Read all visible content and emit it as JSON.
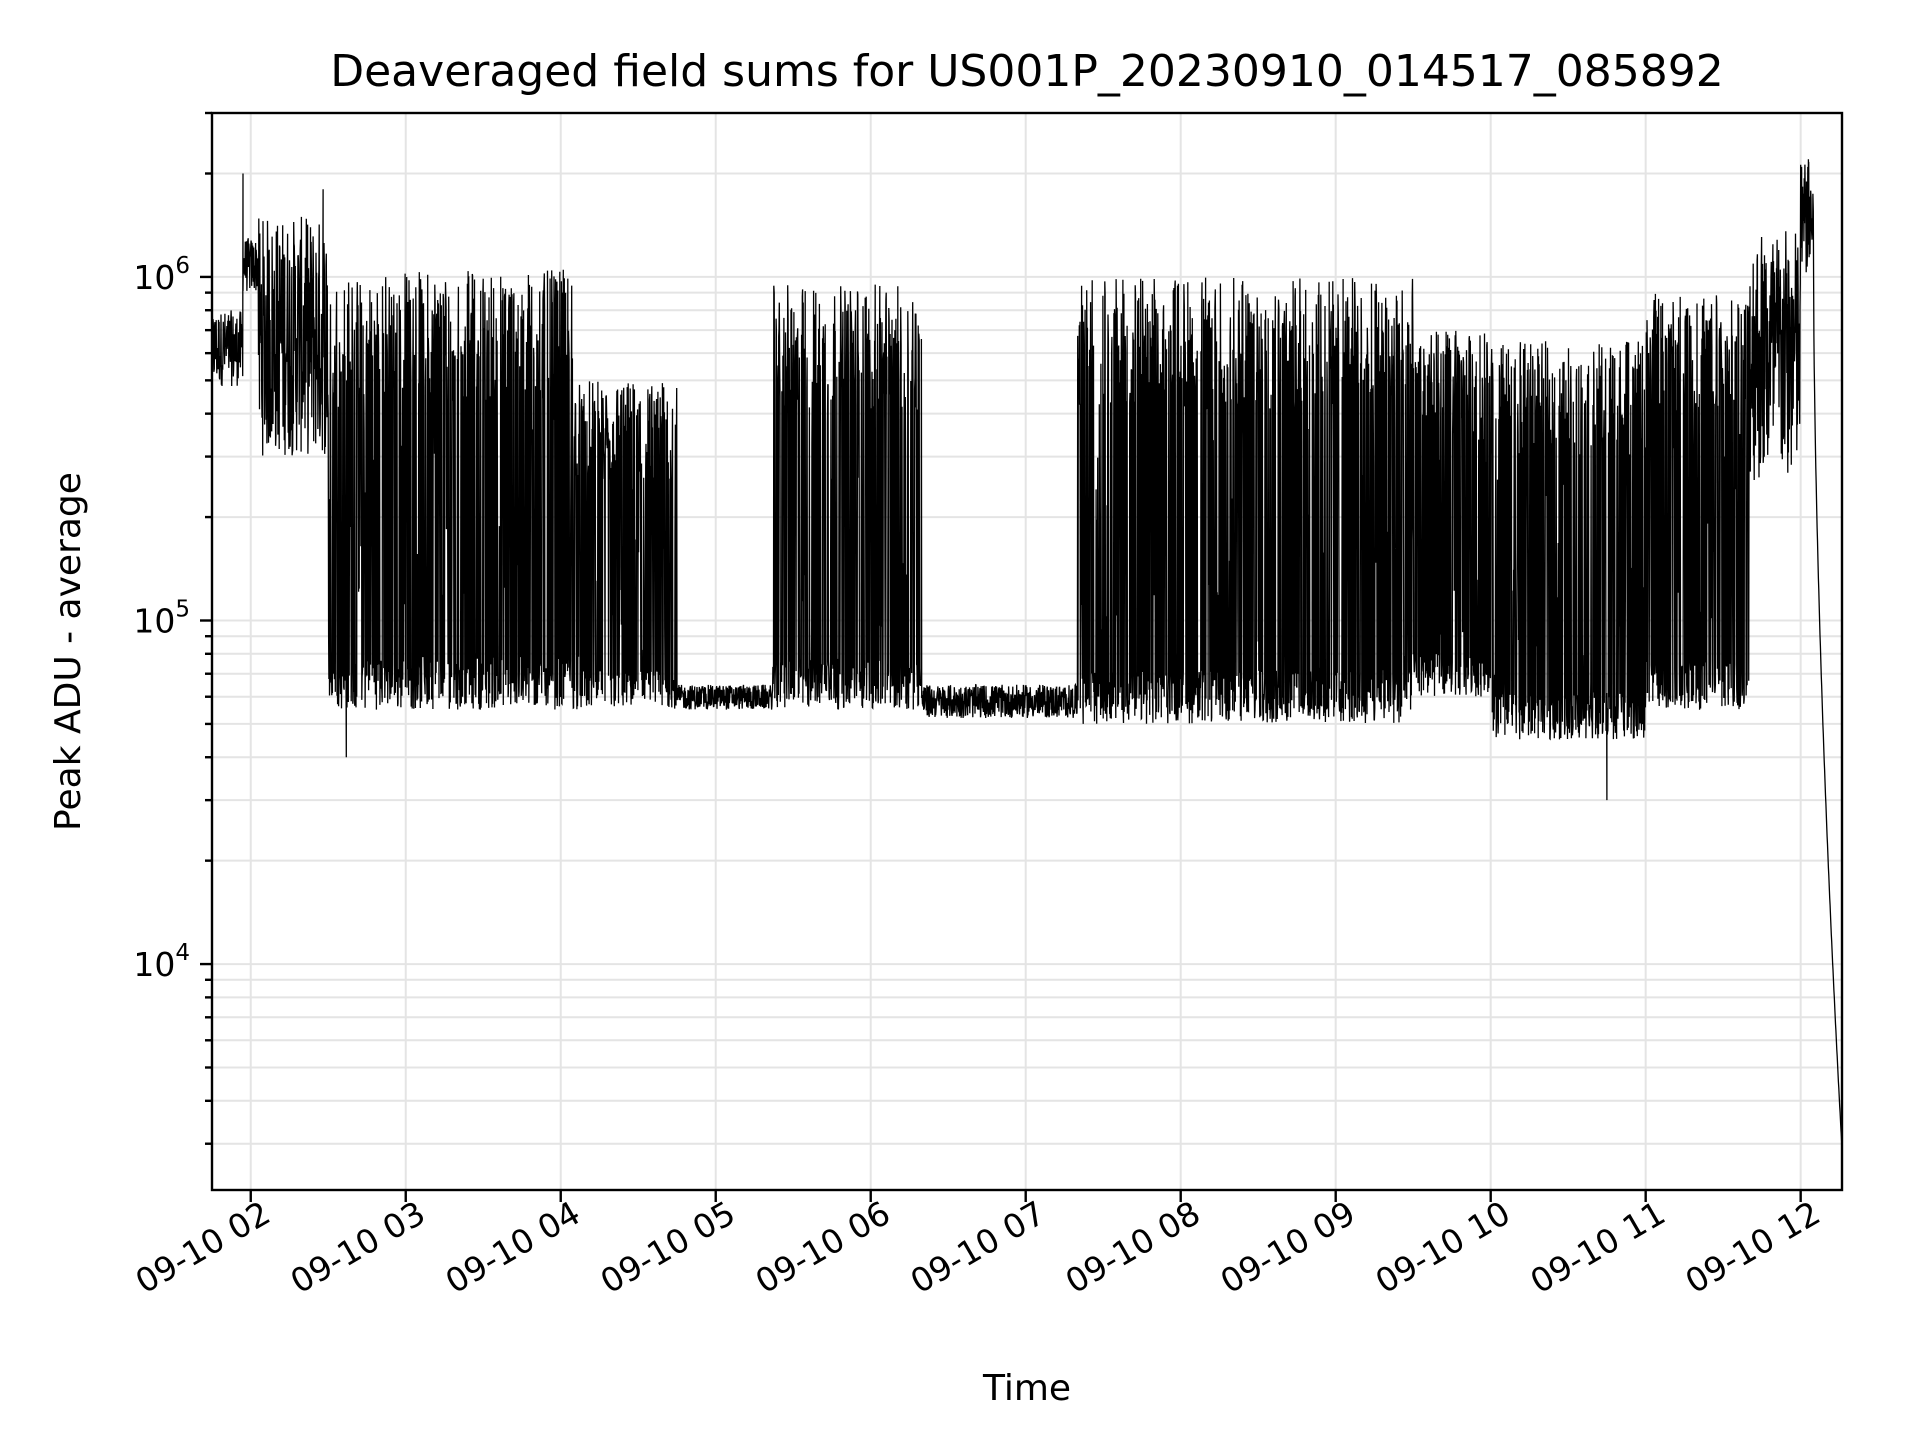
{
  "chart_data": {
    "type": "line",
    "title": "Deaveraged field sums for US001P_20230910_014517_085892",
    "xlabel": "Time",
    "ylabel": "Peak ADU - average",
    "yscale": "log",
    "grid": true,
    "line_color": "#000000",
    "xlim": [
      "2023-09-10 01:45",
      "2023-09-10 12:16"
    ],
    "ylim": [
      2200,
      3000000
    ],
    "x_ticks": [
      {
        "value": "2023-09-10 02:00",
        "label": "09-10 02"
      },
      {
        "value": "2023-09-10 03:00",
        "label": "09-10 03"
      },
      {
        "value": "2023-09-10 04:00",
        "label": "09-10 04"
      },
      {
        "value": "2023-09-10 05:00",
        "label": "09-10 05"
      },
      {
        "value": "2023-09-10 06:00",
        "label": "09-10 06"
      },
      {
        "value": "2023-09-10 07:00",
        "label": "09-10 07"
      },
      {
        "value": "2023-09-10 08:00",
        "label": "09-10 08"
      },
      {
        "value": "2023-09-10 09:00",
        "label": "09-10 09"
      },
      {
        "value": "2023-09-10 10:00",
        "label": "09-10 10"
      },
      {
        "value": "2023-09-10 11:00",
        "label": "09-10 11"
      },
      {
        "value": "2023-09-10 12:00",
        "label": "09-10 12"
      }
    ],
    "y_ticks": [
      {
        "value": 10000,
        "base": "10",
        "exp": "4"
      },
      {
        "value": 100000,
        "base": "10",
        "exp": "5"
      },
      {
        "value": 1000000,
        "base": "10",
        "exp": "6"
      }
    ],
    "series": [
      {
        "values_summary": "dense noisy signal alternating between a floor near 5e4 and peaks near 1e6",
        "segments": [
          {
            "start": "2023-09-10 01:45",
            "end": "2023-09-10 01:57",
            "low": 480000,
            "high": 800000
          },
          {
            "start": "2023-09-10 01:57",
            "end": "2023-09-10 02:03",
            "low": 900000,
            "high": 1300000
          },
          {
            "start": "2023-09-10 02:03",
            "end": "2023-09-10 02:30",
            "low": 300000,
            "high": 1500000
          },
          {
            "start": "2023-09-10 02:30",
            "end": "2023-09-10 02:45",
            "low": 55000,
            "high": 1000000
          },
          {
            "start": "2023-09-10 02:45",
            "end": "2023-09-10 04:05",
            "low": 55000,
            "high": 1050000
          },
          {
            "start": "2023-09-10 04:05",
            "end": "2023-09-10 04:45",
            "low": 55000,
            "high": 500000
          },
          {
            "start": "2023-09-10 04:45",
            "end": "2023-09-10 05:22",
            "low": 55000,
            "high": 65000
          },
          {
            "start": "2023-09-10 05:22",
            "end": "2023-09-10 06:20",
            "low": 55000,
            "high": 950000
          },
          {
            "start": "2023-09-10 06:20",
            "end": "2023-09-10 07:20",
            "low": 52000,
            "high": 65000
          },
          {
            "start": "2023-09-10 07:20",
            "end": "2023-09-10 09:30",
            "low": 50000,
            "high": 1000000
          },
          {
            "start": "2023-09-10 09:30",
            "end": "2023-09-10 10:00",
            "low": 60000,
            "high": 700000
          },
          {
            "start": "2023-09-10 10:00",
            "end": "2023-09-10 11:00",
            "low": 45000,
            "high": 650000
          },
          {
            "start": "2023-09-10 11:00",
            "end": "2023-09-10 11:40",
            "low": 55000,
            "high": 900000
          },
          {
            "start": "2023-09-10 11:40",
            "end": "2023-09-10 12:00",
            "low": 250000,
            "high": 1400000
          },
          {
            "start": "2023-09-10 12:00",
            "end": "2023-09-10 12:05",
            "low": 1000000,
            "high": 2200000
          },
          {
            "start": "2023-09-10 12:05",
            "end": "2023-09-10 12:16",
            "low": 2900,
            "high": 1000000
          }
        ],
        "spikes": [
          {
            "x": "2023-09-10 01:57",
            "y": 2000000
          },
          {
            "x": "2023-09-10 02:28",
            "y": 1800000
          },
          {
            "x": "2023-09-10 02:37",
            "y": 40000
          },
          {
            "x": "2023-09-10 10:45",
            "y": 30000
          },
          {
            "x": "2023-09-10 12:03",
            "y": 2200000
          },
          {
            "x": "2023-09-10 12:16",
            "y": 2900
          }
        ]
      }
    ]
  }
}
